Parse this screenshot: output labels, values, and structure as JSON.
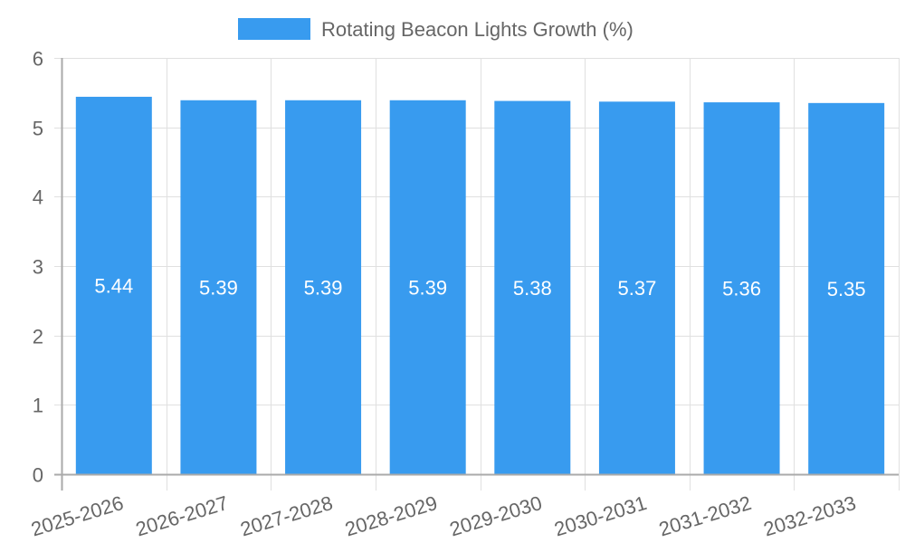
{
  "chart_data": {
    "type": "bar",
    "title": "",
    "legend": {
      "position": "top",
      "entries": [
        {
          "label": "Rotating Beacon Lights Growth (%)",
          "color": "#389BEF"
        }
      ]
    },
    "xlabel": "",
    "ylabel": "",
    "ylim": [
      0,
      6
    ],
    "y_ticks": [
      0,
      1,
      2,
      3,
      4,
      5,
      6
    ],
    "grid": true,
    "categories": [
      "2025-2026",
      "2026-2027",
      "2027-2028",
      "2028-2029",
      "2029-2030",
      "2030-2031",
      "2031-2032",
      "2032-2033"
    ],
    "series": [
      {
        "name": "Rotating Beacon Lights Growth (%)",
        "color": "#389BEF",
        "values": [
          5.44,
          5.39,
          5.39,
          5.39,
          5.38,
          5.37,
          5.36,
          5.35
        ],
        "data_labels": [
          "5.44",
          "5.39",
          "5.39",
          "5.39",
          "5.38",
          "5.37",
          "5.36",
          "5.35"
        ]
      }
    ]
  },
  "colors": {
    "bar": "#389BEF",
    "grid": "#e0e0e0",
    "axis": "#aaaaaa",
    "text": "#666666",
    "label": "#ffffff"
  }
}
